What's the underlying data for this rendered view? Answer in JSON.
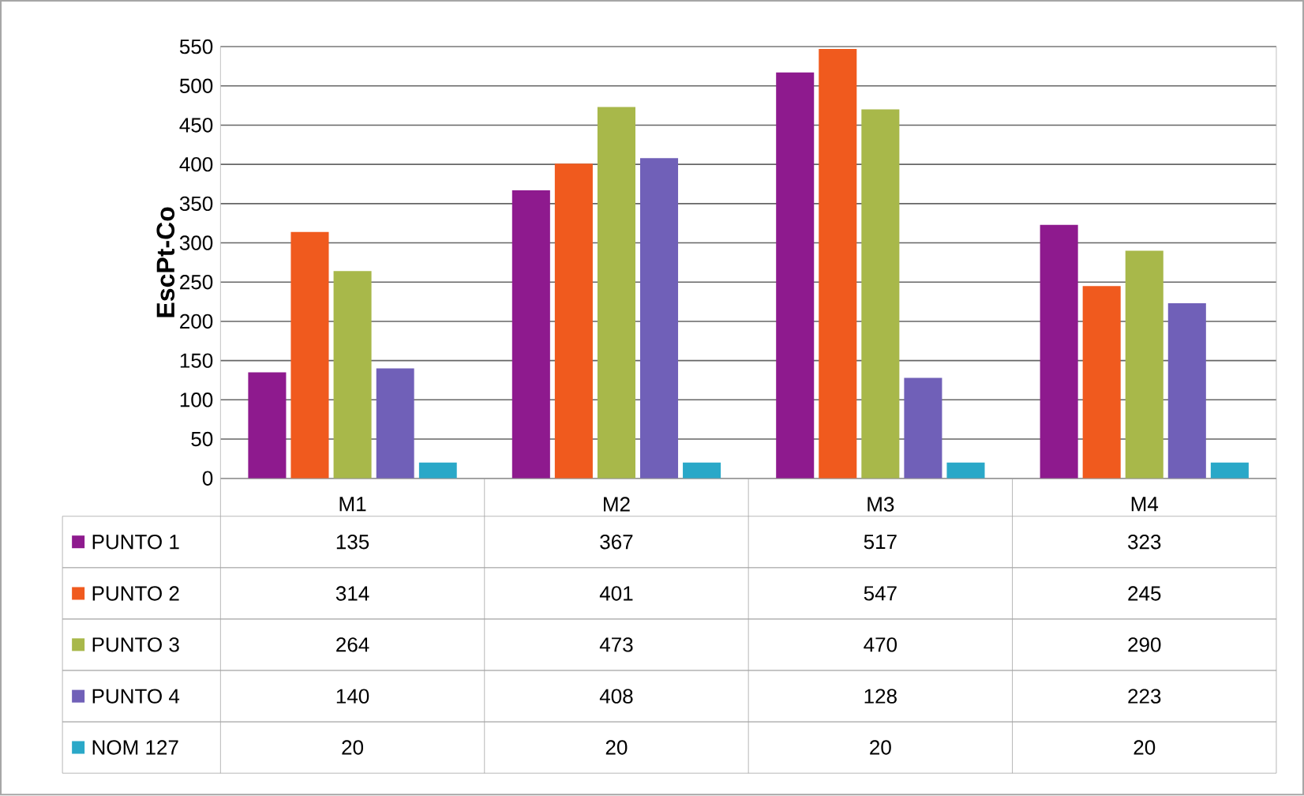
{
  "chart_data": {
    "type": "bar",
    "ylabel": "EscPt-Co",
    "categories": [
      "M1",
      "M2",
      "M3",
      "M4"
    ],
    "series": [
      {
        "name": "PUNTO 1",
        "color": "#8e1a8e",
        "values": [
          135,
          367,
          517,
          323
        ]
      },
      {
        "name": "PUNTO 2",
        "color": "#f05a1e",
        "values": [
          314,
          401,
          547,
          245
        ]
      },
      {
        "name": "PUNTO 3",
        "color": "#a8b84a",
        "values": [
          264,
          473,
          470,
          290
        ]
      },
      {
        "name": "PUNTO 4",
        "color": "#7060b8",
        "values": [
          140,
          408,
          128,
          223
        ]
      },
      {
        "name": "NOM 127",
        "color": "#2aa8c8",
        "values": [
          20,
          20,
          20,
          20
        ]
      }
    ],
    "ylim": [
      0,
      550
    ],
    "yticks": [
      0,
      50,
      100,
      150,
      200,
      250,
      300,
      350,
      400,
      450,
      500,
      550
    ],
    "grid": "y",
    "legend": "bottom",
    "data_labels": true
  }
}
